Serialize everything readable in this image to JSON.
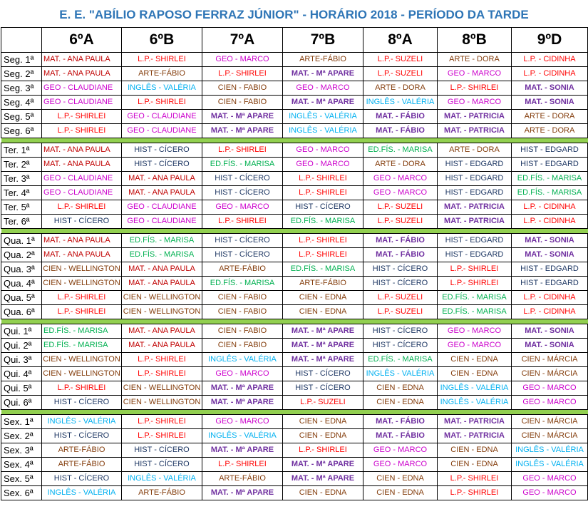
{
  "title": "E. E. \"ABÍLIO RAPOSO FERRAZ JÚNIOR\" - HORÁRIO 2018 - PERÍODO DA TARDE",
  "colors": {
    "title": "#2e75b6",
    "separator": "#92d050",
    "MAT": "#c00000",
    "LP": "#ff0000",
    "GEO": "#cc00cc",
    "ARTE": "#833c0b",
    "INGLES": "#00b0f0",
    "CIEN": "#833c0b",
    "HIST": "#1f3864",
    "EDFIS": "#00b050",
    "MAT_BOLD": "#7030a0"
  },
  "classes": [
    "6ºA",
    "6ºB",
    "7ºA",
    "7ºB",
    "8ºA",
    "8ºB",
    "9ºD"
  ],
  "days": [
    {
      "rows": [
        {
          "label": "Seg. 1ª",
          "cells": [
            "MAT. - ANA PAULA",
            "L.P.- SHIRLEI",
            "GEO - MARCO",
            "ARTE-FÁBIO",
            "L.P.- SUZELI",
            "ARTE - DORA",
            "L.P. - CIDINHA"
          ]
        },
        {
          "label": "Seg. 2ª",
          "cells": [
            "MAT. - ANA PAULA",
            "ARTE-FÁBIO",
            "L.P.- SHIRLEI",
            "MAT. - Mª APARE",
            "L.P.- SUZELI",
            "GEO - MARCO",
            "L.P. - CIDINHA"
          ]
        },
        {
          "label": "Seg. 3ª",
          "cells": [
            "GEO - CLAUDIANE",
            "INGLÊS - VALÉRIA",
            "CIEN - FABIO",
            "GEO - MARCO",
            "ARTE - DORA",
            "L.P.- SHIRLEI",
            "MAT. - SONIA"
          ]
        },
        {
          "label": "Seg. 4ª",
          "cells": [
            "GEO - CLAUDIANE",
            "L.P.- SHIRLEI",
            "CIEN - FABIO",
            "MAT. - Mª APARE",
            "INGLÊS - VALÉRIA",
            "GEO - MARCO",
            "MAT. - SONIA"
          ]
        },
        {
          "label": "Seg. 5ª",
          "cells": [
            "L.P.- SHIRLEI",
            "GEO - CLAUDIANE",
            "MAT. - Mª APARE",
            "INGLÊS - VALÉRIA",
            "MAT. - FÁBIO",
            "MAT. - PATRICIA",
            "ARTE - DORA"
          ]
        },
        {
          "label": "Seg. 6ª",
          "cells": [
            "L.P.- SHIRLEI",
            "GEO - CLAUDIANE",
            "MAT. - Mª APARE",
            "INGLÊS - VALÉRIA",
            "MAT. - FÁBIO",
            "MAT. - PATRICIA",
            "ARTE - DORA"
          ]
        }
      ]
    },
    {
      "rows": [
        {
          "label": "Ter. 1ª",
          "cells": [
            "MAT. - ANA PAULA",
            "HIST - CÍCERO",
            "L.P.- SHIRLEI",
            "GEO - MARCO",
            "ED.FÍS. - MARISA",
            "ARTE - DORA",
            "HIST - EDGARD"
          ]
        },
        {
          "label": "Ter. 2ª",
          "cells": [
            "MAT. - ANA PAULA",
            "HIST - CÍCERO",
            "ED.FÍS. - MARISA",
            "GEO - MARCO",
            "ARTE - DORA",
            "HIST - EDGARD",
            "HIST - EDGARD"
          ]
        },
        {
          "label": "Ter. 3ª",
          "cells": [
            "GEO - CLAUDIANE",
            "MAT. - ANA PAULA",
            "HIST - CÍCERO",
            "L.P.- SHIRLEI",
            "GEO - MARCO",
            "HIST - EDGARD",
            "ED.FÍS. - MARISA"
          ]
        },
        {
          "label": "Ter. 4ª",
          "cells": [
            "GEO - CLAUDIANE",
            "MAT. - ANA PAULA",
            "HIST - CÍCERO",
            "L.P.- SHIRLEI",
            "GEO - MARCO",
            "HIST - EDGARD",
            "ED.FÍS. - MARISA"
          ]
        },
        {
          "label": "Ter. 5ª",
          "cells": [
            "L.P.- SHIRLEI",
            "GEO - CLAUDIANE",
            "GEO - MARCO",
            "HIST - CÍCERO",
            "L.P.- SUZELI",
            "MAT. - PATRICIA",
            "L.P. - CIDINHA"
          ]
        },
        {
          "label": "Ter. 6ª",
          "cells": [
            "HIST - CÍCERO",
            "GEO - CLAUDIANE",
            "L.P.- SHIRLEI",
            "ED.FÍS. - MARISA",
            "L.P.- SUZELI",
            "MAT. - PATRICIA",
            "L.P. - CIDINHA"
          ]
        }
      ]
    },
    {
      "rows": [
        {
          "label": "Qua. 1ª",
          "cells": [
            "MAT. - ANA PAULA",
            "ED.FÍS. - MARISA",
            "HIST - CÍCERO",
            "L.P.- SHIRLEI",
            "MAT. - FÁBIO",
            "HIST - EDGARD",
            "MAT. - SONIA"
          ]
        },
        {
          "label": "Qua. 2ª",
          "cells": [
            "MAT. - ANA PAULA",
            "ED.FÍS. - MARISA",
            "HIST - CÍCERO",
            "L.P.- SHIRLEI",
            "MAT. - FÁBIO",
            "HIST - EDGARD",
            "MAT. - SONIA"
          ]
        },
        {
          "label": "Qua. 3ª",
          "cells": [
            "CIEN - WELLINGTON",
            "MAT. - ANA PAULA",
            "ARTE-FÁBIO",
            "ED.FÍS. - MARISA",
            "HIST - CÍCERO",
            "L.P.- SHIRLEI",
            "HIST - EDGARD"
          ]
        },
        {
          "label": "Qua. 4ª",
          "cells": [
            "CIEN - WELLINGTON",
            "MAT. - ANA PAULA",
            "ED.FÍS. - MARISA",
            "ARTE-FÁBIO",
            "HIST - CÍCERO",
            "L.P.- SHIRLEI",
            "HIST - EDGARD"
          ]
        },
        {
          "label": "Qua. 5ª",
          "cells": [
            "L.P.- SHIRLEI",
            "CIEN - WELLINGTON",
            "CIEN - FABIO",
            "CIEN - EDNA",
            "L.P.- SUZELI",
            "ED.FÍS. - MARISA",
            "L.P. - CIDINHA"
          ]
        },
        {
          "label": "Qua. 6ª",
          "cells": [
            "L.P.- SHIRLEI",
            "CIEN - WELLINGTON",
            "CIEN - FABIO",
            "CIEN - EDNA",
            "L.P.- SUZELI",
            "ED.FÍS. - MARISA",
            "L.P. - CIDINHA"
          ]
        }
      ]
    },
    {
      "rows": [
        {
          "label": "Qui. 1ª",
          "cells": [
            "ED.FÍS. - MARISA",
            "MAT. - ANA PAULA",
            "CIEN - FABIO",
            "MAT. - Mª APARE",
            "HIST - CÍCERO",
            "GEO - MARCO",
            "MAT. - SONIA"
          ]
        },
        {
          "label": "Qui. 2ª",
          "cells": [
            "ED.FÍS. - MARISA",
            "MAT. - ANA PAULA",
            "CIEN - FABIO",
            "MAT. - Mª APARE",
            "HIST - CÍCERO",
            "GEO - MARCO",
            "MAT. - SONIA"
          ]
        },
        {
          "label": "Qui. 3ª",
          "cells": [
            "CIEN - WELLINGTON",
            "L.P.- SHIRLEI",
            "INGLÊS - VALÉRIA",
            "MAT. - Mª APARE",
            "ED.FÍS. - MARISA",
            "CIEN - EDNA",
            "CIEN - MÁRCIA"
          ]
        },
        {
          "label": "Qui. 4ª",
          "cells": [
            "CIEN - WELLINGTON",
            "L.P.- SHIRLEI",
            "GEO - MARCO",
            "HIST - CÍCERO",
            "INGLÊS - VALÉRIA",
            "CIEN - EDNA",
            "CIEN - MÁRCIA"
          ]
        },
        {
          "label": "Qui. 5ª",
          "cells": [
            "L.P.- SHIRLEI",
            "CIEN - WELLINGTON",
            "MAT. - Mª APARE",
            "HIST - CÍCERO",
            "CIEN - EDNA",
            "INGLÊS - VALÉRIA",
            "GEO - MARCO"
          ]
        },
        {
          "label": "Qui. 6ª",
          "cells": [
            "HIST - CÍCERO",
            "CIEN - WELLINGTON",
            "MAT. - Mª APARE",
            "L.P.- SUZELI",
            "CIEN - EDNA",
            "INGLÊS - VALÉRIA",
            "GEO - MARCO"
          ]
        }
      ]
    },
    {
      "rows": [
        {
          "label": "Sex. 1ª",
          "cells": [
            "INGLÊS - VALÉRIA",
            "L.P.- SHIRLEI",
            "GEO - MARCO",
            "CIEN - EDNA",
            "MAT. - FÁBIO",
            "MAT. - PATRICIA",
            "CIEN - MÁRCIA"
          ]
        },
        {
          "label": "Sex. 2ª",
          "cells": [
            "HIST - CÍCERO",
            "L.P.- SHIRLEI",
            "INGLÊS - VALÉRIA",
            "CIEN - EDNA",
            "MAT. - FÁBIO",
            "MAT. - PATRICIA",
            "CIEN - MÁRCIA"
          ]
        },
        {
          "label": "Sex. 3ª",
          "cells": [
            "ARTE-FÁBIO",
            "HIST - CÍCERO",
            "MAT. - Mª APARE",
            "L.P.- SHIRLEI",
            "GEO - MARCO",
            "CIEN - EDNA",
            "INGLÊS - VALÉRIA"
          ]
        },
        {
          "label": "Sex. 4ª",
          "cells": [
            "ARTE-FÁBIO",
            "HIST - CÍCERO",
            "L.P.- SHIRLEI",
            "MAT. - Mª APARE",
            "GEO - MARCO",
            "CIEN - EDNA",
            "INGLÊS - VALÉRIA"
          ]
        },
        {
          "label": "Sex. 5ª",
          "cells": [
            "HIST - CÍCERO",
            "INGLÊS - VALÉRIA",
            "ARTE-FÁBIO",
            "MAT. - Mª APARE",
            "CIEN - EDNA",
            "L.P.- SHIRLEI",
            "GEO - MARCO"
          ]
        },
        {
          "label": "Sex. 6ª",
          "cells": [
            "INGLÊS - VALÉRIA",
            "ARTE-FÁBIO",
            "MAT. - Mª APARE",
            "CIEN - EDNA",
            "CIEN - EDNA",
            "L.P.- SHIRLEI",
            "GEO - MARCO"
          ]
        }
      ]
    }
  ]
}
